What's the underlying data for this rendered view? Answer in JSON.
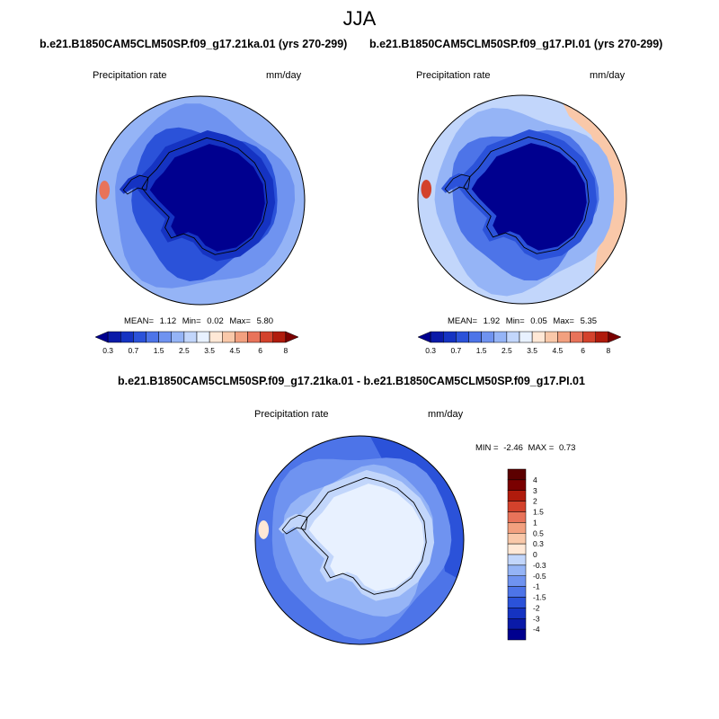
{
  "chart_data": [
    {
      "type": "heatmap",
      "projection": "south-polar-stereographic",
      "title": "b.e21.B1850CAM5CLM50SP.f09_g17.21ka.01 (yrs 270-299)",
      "variable": "Precipitation rate",
      "units": "mm/day",
      "stats": {
        "mean_label": "MEAN=",
        "mean": "1.12",
        "min_label": "Min=",
        "min": "0.02",
        "max_label": "Max=",
        "max": "5.80"
      },
      "colorbar": {
        "orientation": "horizontal",
        "levels": [
          0.3,
          0.5,
          0.7,
          1,
          1.5,
          2,
          2.5,
          3,
          3.5,
          4,
          4.5,
          5,
          6,
          7,
          8
        ],
        "tick_labels": [
          "0.3",
          "0.7",
          "1.5",
          "2.5",
          "3.5",
          "4.5",
          "6",
          "8"
        ],
        "colors": [
          "#00008f",
          "#0a1aa8",
          "#1533c2",
          "#2b52d9",
          "#4d74e8",
          "#6f93f0",
          "#95b4f6",
          "#c2d6fb",
          "#e8f1ff",
          "#ffe8d6",
          "#f9c8a9",
          "#f2a07f",
          "#e8735a",
          "#d3422c",
          "#b01b0c",
          "#7a0000"
        ]
      },
      "fields": {
        "ocean": "#95b4f6",
        "band": "#6f93f0",
        "inner": "#2b52d9",
        "coast": "#1533c2",
        "interior": "#00008f",
        "hotspot": "#e8735a"
      }
    },
    {
      "type": "heatmap",
      "projection": "south-polar-stereographic",
      "title": "b.e21.B1850CAM5CLM50SP.f09_g17.PI.01 (yrs 270-299)",
      "variable": "Precipitation rate",
      "units": "mm/day",
      "stats": {
        "mean_label": "MEAN=",
        "mean": "1.92",
        "min_label": "Min=",
        "min": "0.05",
        "max_label": "Max=",
        "max": "5.35"
      },
      "colorbar": {
        "orientation": "horizontal",
        "levels": [
          0.3,
          0.5,
          0.7,
          1,
          1.5,
          2,
          2.5,
          3,
          3.5,
          4,
          4.5,
          5,
          6,
          7,
          8
        ],
        "tick_labels": [
          "0.3",
          "0.7",
          "1.5",
          "2.5",
          "3.5",
          "4.5",
          "6",
          "8"
        ],
        "colors": [
          "#00008f",
          "#0a1aa8",
          "#1533c2",
          "#2b52d9",
          "#4d74e8",
          "#6f93f0",
          "#95b4f6",
          "#c2d6fb",
          "#e8f1ff",
          "#ffe8d6",
          "#f9c8a9",
          "#f2a07f",
          "#e8735a",
          "#d3422c",
          "#b01b0c",
          "#7a0000"
        ]
      },
      "fields": {
        "ocean": "#c2d6fb",
        "band": "#95b4f6",
        "inner": "#4d74e8",
        "coast": "#2b52d9",
        "interior": "#00008f",
        "warm": "#f9c8a9",
        "hotspot": "#d3422c"
      }
    },
    {
      "type": "heatmap",
      "projection": "south-polar-stereographic",
      "title": "b.e21.B1850CAM5CLM50SP.f09_g17.21ka.01 - b.e21.B1850CAM5CLM50SP.f09_g17.PI.01",
      "variable": "Precipitation rate",
      "units": "mm/day",
      "stats": {
        "min_label": "MIN =",
        "min": "-2.46",
        "max_label": "MAX =",
        "max": "0.73"
      },
      "colorbar": {
        "orientation": "vertical",
        "levels": [
          -4,
          -3,
          -2,
          -1.5,
          -1,
          -0.5,
          -0.3,
          0,
          0.3,
          0.5,
          1,
          1.5,
          2,
          3,
          4
        ],
        "tick_labels": [
          "-4",
          "-3",
          "-2",
          "-1.5",
          "-1",
          "-0.5",
          "-0.3",
          "0",
          "0.3",
          "0.5",
          "1",
          "1.5",
          "2",
          "3",
          "4"
        ],
        "colors": [
          "#00008f",
          "#0a1aa8",
          "#1533c2",
          "#2b52d9",
          "#4d74e8",
          "#6f93f0",
          "#95b4f6",
          "#c2d6fb",
          "#ffe8d6",
          "#f9c8a9",
          "#f2a07f",
          "#e8735a",
          "#d3422c",
          "#b01b0c",
          "#7a0000",
          "#5c0000"
        ]
      },
      "fields": {
        "ocean": "#4d74e8",
        "band": "#6f93f0",
        "inner": "#95b4f6",
        "coast": "#c2d6fb",
        "interior": "#e8f1ff",
        "deep": "#2b52d9",
        "hotspot": "#ffe8d6"
      }
    }
  ],
  "season": "JJA"
}
